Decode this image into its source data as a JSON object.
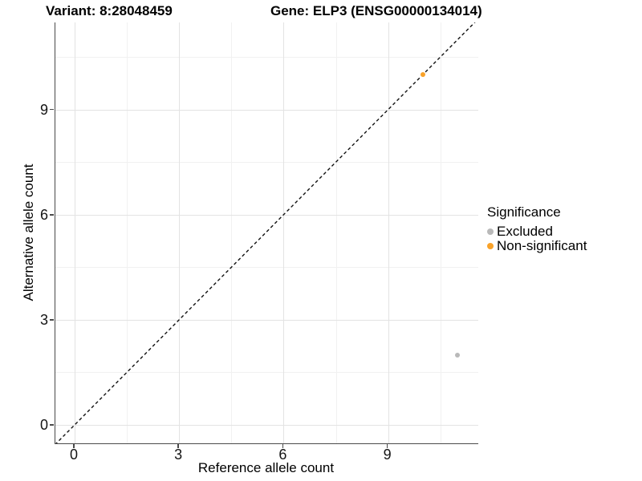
{
  "titles": {
    "variant": "Variant: 8:28048459",
    "gene": "Gene: ELP3 (ENSG00000134014)"
  },
  "axes": {
    "x": {
      "label": "Reference allele count"
    },
    "y": {
      "label": "Alternative allele count"
    }
  },
  "legend": {
    "title": "Significance",
    "items": [
      {
        "label": "Excluded",
        "color": "#b9b9b9"
      },
      {
        "label": "Non-significant",
        "color": "#f9a229"
      }
    ]
  },
  "chart_data": {
    "type": "scatter",
    "title": "Variant: 8:28048459  Gene: ELP3 (ENSG00000134014)",
    "xlabel": "Reference allele count",
    "ylabel": "Alternative allele count",
    "xlim": [
      -0.55,
      11.6
    ],
    "ylim": [
      -0.55,
      11.55
    ],
    "x_ticks": [
      0,
      3,
      6,
      9
    ],
    "y_ticks": [
      0,
      3,
      6,
      9
    ],
    "x_minor_ticks": [
      1.5,
      4.5,
      7.5,
      10.5
    ],
    "y_minor_ticks": [
      1.5,
      4.5,
      7.5,
      10.5
    ],
    "grid": true,
    "legend_position": "right",
    "series": [
      {
        "name": "Excluded",
        "color": "#b9b9b9",
        "points": [
          [
            11,
            2
          ]
        ]
      },
      {
        "name": "Non-significant",
        "color": "#f9a229",
        "points": [
          [
            10,
            10
          ]
        ]
      }
    ],
    "reference_line": {
      "type": "identity y=x",
      "style": "dashed",
      "color": "#111111"
    }
  }
}
